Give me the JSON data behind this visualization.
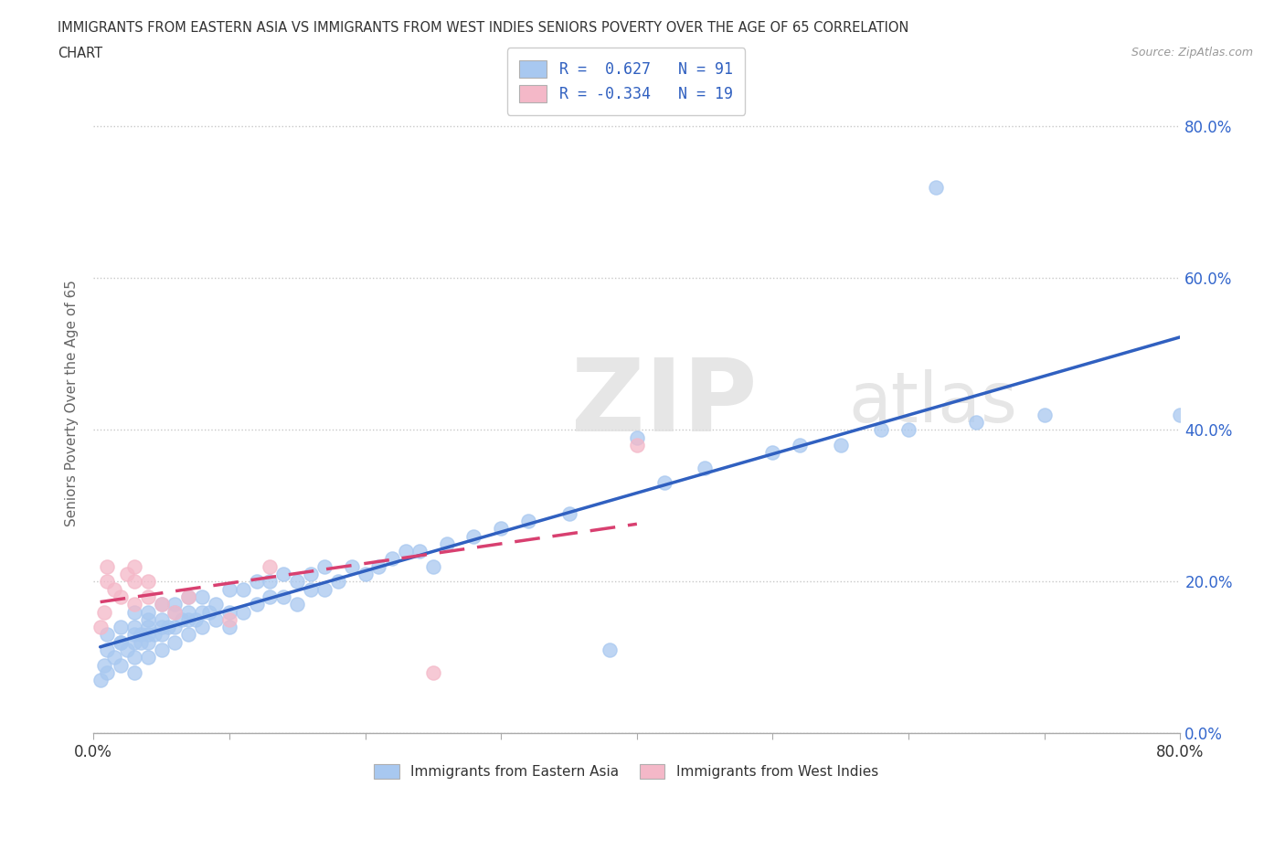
{
  "title_line1": "IMMIGRANTS FROM EASTERN ASIA VS IMMIGRANTS FROM WEST INDIES SENIORS POVERTY OVER THE AGE OF 65 CORRELATION",
  "title_line2": "CHART",
  "source_text": "Source: ZipAtlas.com",
  "ylabel": "Seniors Poverty Over the Age of 65",
  "xlim": [
    0.0,
    0.8
  ],
  "ylim": [
    0.0,
    0.87
  ],
  "ytick_vals": [
    0.0,
    0.2,
    0.4,
    0.6,
    0.8
  ],
  "ytick_labels": [
    "0.0%",
    "20.0%",
    "40.0%",
    "60.0%",
    "80.0%"
  ],
  "grid_color": "#c8c8c8",
  "bg_color": "#ffffff",
  "r_eastern_asia": 0.627,
  "n_eastern_asia": 91,
  "r_west_indies": -0.334,
  "n_west_indies": 19,
  "color_eastern_asia": "#a8c8f0",
  "color_west_indies": "#f4b8c8",
  "trendline_eastern_asia_color": "#3060c0",
  "trendline_west_indies_color": "#d84070",
  "watermark_zip": "ZIP",
  "watermark_atlas": "atlas",
  "legend_top_label1": "R =  0.627   N = 91",
  "legend_top_label2": "R = -0.334   N = 19",
  "legend_bot_label1": "Immigrants from Eastern Asia",
  "legend_bot_label2": "Immigrants from West Indies",
  "eastern_asia_x": [
    0.005,
    0.008,
    0.01,
    0.01,
    0.01,
    0.015,
    0.02,
    0.02,
    0.02,
    0.02,
    0.025,
    0.03,
    0.03,
    0.03,
    0.03,
    0.03,
    0.03,
    0.035,
    0.035,
    0.04,
    0.04,
    0.04,
    0.04,
    0.04,
    0.04,
    0.045,
    0.05,
    0.05,
    0.05,
    0.05,
    0.05,
    0.055,
    0.06,
    0.06,
    0.06,
    0.06,
    0.065,
    0.07,
    0.07,
    0.07,
    0.07,
    0.075,
    0.08,
    0.08,
    0.08,
    0.085,
    0.09,
    0.09,
    0.1,
    0.1,
    0.1,
    0.11,
    0.11,
    0.12,
    0.12,
    0.13,
    0.13,
    0.14,
    0.14,
    0.15,
    0.15,
    0.16,
    0.16,
    0.17,
    0.17,
    0.18,
    0.19,
    0.2,
    0.21,
    0.22,
    0.23,
    0.24,
    0.25,
    0.26,
    0.28,
    0.3,
    0.32,
    0.35,
    0.38,
    0.4,
    0.42,
    0.45,
    0.5,
    0.52,
    0.55,
    0.58,
    0.6,
    0.62,
    0.65,
    0.7,
    0.8
  ],
  "eastern_asia_y": [
    0.07,
    0.09,
    0.08,
    0.11,
    0.13,
    0.1,
    0.09,
    0.12,
    0.14,
    0.12,
    0.11,
    0.08,
    0.1,
    0.12,
    0.13,
    0.14,
    0.16,
    0.12,
    0.13,
    0.1,
    0.12,
    0.13,
    0.15,
    0.14,
    0.16,
    0.13,
    0.11,
    0.13,
    0.15,
    0.14,
    0.17,
    0.14,
    0.12,
    0.14,
    0.16,
    0.17,
    0.15,
    0.13,
    0.15,
    0.16,
    0.18,
    0.15,
    0.14,
    0.16,
    0.18,
    0.16,
    0.15,
    0.17,
    0.14,
    0.16,
    0.19,
    0.16,
    0.19,
    0.17,
    0.2,
    0.18,
    0.2,
    0.18,
    0.21,
    0.17,
    0.2,
    0.19,
    0.21,
    0.19,
    0.22,
    0.2,
    0.22,
    0.21,
    0.22,
    0.23,
    0.24,
    0.24,
    0.22,
    0.25,
    0.26,
    0.27,
    0.28,
    0.29,
    0.11,
    0.39,
    0.33,
    0.35,
    0.37,
    0.38,
    0.38,
    0.4,
    0.4,
    0.72,
    0.41,
    0.42,
    0.42
  ],
  "west_indies_x": [
    0.005,
    0.008,
    0.01,
    0.01,
    0.015,
    0.02,
    0.025,
    0.03,
    0.03,
    0.03,
    0.04,
    0.04,
    0.05,
    0.06,
    0.07,
    0.1,
    0.13,
    0.25,
    0.4
  ],
  "west_indies_y": [
    0.14,
    0.16,
    0.2,
    0.22,
    0.19,
    0.18,
    0.21,
    0.17,
    0.2,
    0.22,
    0.18,
    0.2,
    0.17,
    0.16,
    0.18,
    0.15,
    0.22,
    0.08,
    0.38
  ]
}
